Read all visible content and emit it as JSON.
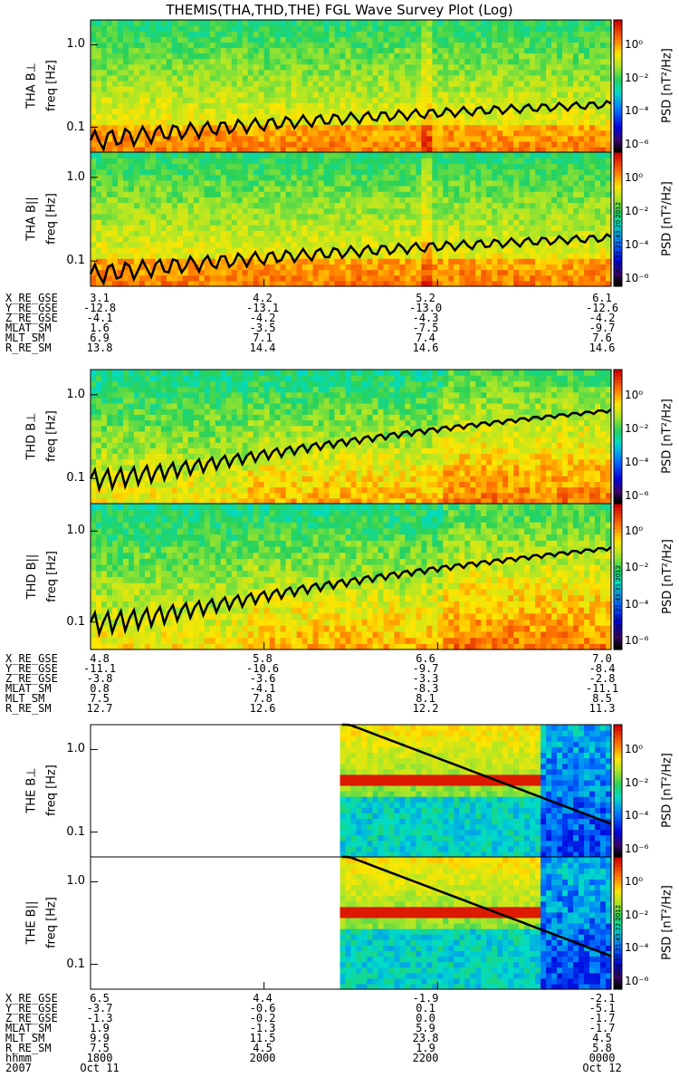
{
  "title": "THEMIS(THA,THD,THE) FGL Wave Survey Plot (Log)",
  "chart_data": {
    "type": "heatmap",
    "title": "THEMIS(THA,THD,THE) FGL Wave Survey Plot (Log)",
    "ylabel_freq": "freq [Hz]",
    "ytick_labels": [
      "1.0",
      "0.1"
    ],
    "yticks": [
      1.0,
      0.1
    ],
    "ylim": [
      0.05,
      2.0
    ],
    "ylog": true,
    "colorbar": {
      "label": "PSD [nT²/Hz]",
      "range_log10": [
        -6.5,
        1.5
      ],
      "ticks_log10": [
        0,
        -2,
        -4,
        -6
      ],
      "tick_labels": [
        "10⁰",
        "10⁻²",
        "10⁻⁴",
        "10⁻⁶"
      ]
    },
    "x_time_labels": [
      "1800",
      "2000",
      "2200",
      "0000"
    ],
    "x_date_labels": [
      "2007  Oct 11",
      "",
      "",
      "Oct 12"
    ],
    "panels": [
      {
        "label": "THA B⊥",
        "group": 0,
        "stamp": ""
      },
      {
        "label": "THA B||",
        "group": 0,
        "stamp": "Fri Aug 31 21:43:20 2012"
      },
      {
        "label": "THD B⊥",
        "group": 1,
        "stamp": ""
      },
      {
        "label": "THD B||",
        "group": 1,
        "stamp": "Fri Aug 31 21:43:31 2012"
      },
      {
        "label": "THE B⊥",
        "group": 2,
        "stamp": ""
      },
      {
        "label": "THE B||",
        "group": 2,
        "stamp": "Fri Aug 31 21:43:22 2012"
      }
    ],
    "ephemeris": [
      {
        "names": [
          "X_RE_GSE",
          "Y_RE_GSE",
          "Z_RE_GSE",
          "MLAT_SM",
          "MLT_SM",
          "R_RE_SM"
        ],
        "values": [
          [
            "3.1",
            "4.2",
            "5.2",
            "6.1"
          ],
          [
            "-12.8",
            "-13.1",
            "-13.0",
            "-12.6"
          ],
          [
            "-4.1",
            "-4.2",
            "-4.3",
            "-4.2"
          ],
          [
            "1.6",
            "-3.5",
            "-7.5",
            "-9.7"
          ],
          [
            "6.9",
            "7.1",
            "7.4",
            "7.6"
          ],
          [
            "13.8",
            "14.4",
            "14.6",
            "14.6"
          ]
        ]
      },
      {
        "names": [
          "X_RE_GSE",
          "Y_RE_GSE",
          "Z_RE_GSE",
          "MLAT_SM",
          "MLT_SM",
          "R_RE_SM"
        ],
        "values": [
          [
            "4.8",
            "5.8",
            "6.6",
            "7.0"
          ],
          [
            "-11.1",
            "-10.6",
            "-9.7",
            "-8.4"
          ],
          [
            "-3.8",
            "-3.6",
            "-3.3",
            "-2.8"
          ],
          [
            "0.8",
            "-4.1",
            "-8.3",
            "-11.1"
          ],
          [
            "7.5",
            "7.8",
            "8.1",
            "8.5"
          ],
          [
            "12.7",
            "12.6",
            "12.2",
            "11.3"
          ]
        ]
      },
      {
        "names": [
          "X_RE_GSE",
          "Y_RE_GSE",
          "Z_RE_GSE",
          "MLAT_SM",
          "MLT_SM",
          "R_RE_SM",
          "hhmm",
          "2007"
        ],
        "values": [
          [
            "6.5",
            "4.4",
            "-1.9",
            "-2.1"
          ],
          [
            "-3.7",
            "-0.6",
            "0.1",
            "-5.1"
          ],
          [
            "-1.3",
            "-0.2",
            "0.0",
            "-1.7"
          ],
          [
            "1.9",
            "-1.3",
            "5.9",
            "-1.7"
          ],
          [
            "9.9",
            "11.5",
            "23.8",
            "4.5"
          ],
          [
            "7.5",
            "4.5",
            "1.9",
            "5.8"
          ],
          [
            "1800",
            "2000",
            "2200",
            "0000"
          ],
          [
            "Oct 11",
            "",
            "",
            "Oct 12"
          ]
        ]
      }
    ]
  }
}
